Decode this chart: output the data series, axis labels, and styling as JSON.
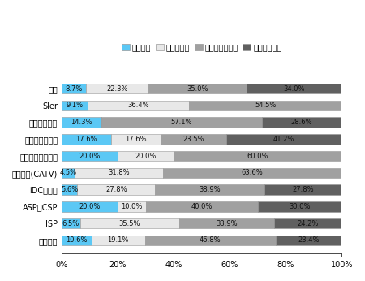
{
  "categories": [
    "全体",
    "SIer",
    "その他製造業",
    "通信機器製造業",
    "ソフトウェア製品",
    "放送事業(CATV)",
    "iDC事業者",
    "ASP・CSP",
    "ISP",
    "通信事業"
  ],
  "series": {
    "導入済み": [
      8.7,
      9.1,
      14.3,
      17.6,
      20.0,
      4.5,
      5.6,
      20.0,
      6.5,
      10.6
    ],
    "試験運用中": [
      22.3,
      36.4,
      0.0,
      17.6,
      20.0,
      31.8,
      27.8,
      10.0,
      35.5,
      19.1
    ],
    "導入手順検討中": [
      35.0,
      54.5,
      57.1,
      23.5,
      60.0,
      63.6,
      38.9,
      40.0,
      33.9,
      46.8
    ],
    "これから検討": [
      34.0,
      0.0,
      28.6,
      41.2,
      0.0,
      0.0,
      27.8,
      30.0,
      24.2,
      23.4
    ]
  },
  "bar_labels": {
    "導入済み": [
      "8.7%",
      "9.1%",
      "14.3%",
      "17.6%",
      "20.0%",
      "4.5%",
      "5.6%",
      "20.0%",
      "6.5%",
      "10.6%"
    ],
    "試験運用中": [
      "22.3%",
      "36.4%",
      "",
      "17.6%",
      "20.0%",
      "31.8%",
      "27.8%",
      "10.0%",
      "35.5%",
      "19.1%"
    ],
    "導入手順検討中": [
      "35.0%",
      "54.5%",
      "57.1%",
      "23.5%",
      "60.0%",
      "63.6%",
      "38.9%",
      "40.0%",
      "33.9%",
      "46.8%"
    ],
    "これから検討": [
      "34.0%",
      "",
      "28.6%",
      "41.2%",
      "",
      "",
      "27.8%",
      "30.0%",
      "24.2%",
      "23.4%"
    ]
  },
  "colors": {
    "導入済み": "#5bc8f5",
    "試験運用中": "#e8e8e8",
    "導入手順検討中": "#a0a0a0",
    "これから検討": "#606060"
  },
  "legend_labels": [
    "導入済み",
    "試験運用中",
    "導入手順検討中",
    "これから検討"
  ],
  "xlim": [
    0,
    100
  ],
  "xticks": [
    0,
    20,
    40,
    60,
    80,
    100
  ],
  "xticklabels": [
    "0%",
    "20%",
    "40%",
    "60%",
    "80%",
    "100%"
  ],
  "bar_height": 0.6,
  "figsize": [
    4.5,
    3.46
  ],
  "dpi": 100,
  "fontsize_labels": 7,
  "fontsize_ticks": 7,
  "fontsize_bar": 6,
  "fontsize_legend": 7,
  "bg_color": "#ffffff",
  "edge_color": "#999999"
}
